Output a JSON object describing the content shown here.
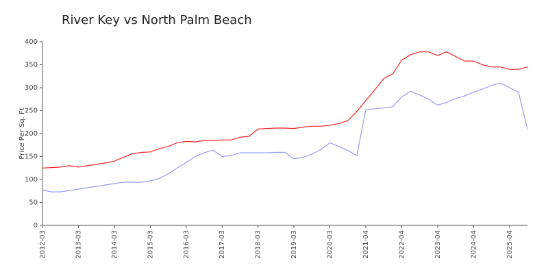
{
  "chart_data": {
    "type": "line",
    "title": "River Key vs North Palm Beach",
    "y_label": "Price Per Sq. Ft",
    "categories": [
      "2012-03",
      null,
      null,
      null,
      "2013-03",
      null,
      null,
      null,
      "2014-03",
      null,
      null,
      null,
      "2015-03",
      null,
      null,
      null,
      "2016-03",
      null,
      null,
      null,
      "2017-03",
      null,
      null,
      null,
      "2018-03",
      null,
      null,
      null,
      "2019-03",
      null,
      null,
      null,
      "2020-03",
      null,
      null,
      null,
      "2021-04",
      null,
      null,
      null,
      "2022-04",
      null,
      null,
      null,
      "2023-04",
      null,
      null,
      null,
      "2024-04",
      null,
      null,
      null,
      "2025-04",
      null,
      null
    ],
    "series": [
      {
        "color": "#ee2222",
        "values": [
          125,
          126,
          127,
          130,
          127,
          130,
          133,
          136,
          140,
          148,
          156,
          159,
          160,
          167,
          172,
          180,
          183,
          182,
          185,
          185,
          186,
          186,
          192,
          194,
          210,
          211,
          212,
          212,
          211,
          214,
          216,
          216,
          218,
          222,
          228,
          248,
          272,
          295,
          320,
          330,
          360,
          372,
          378,
          378,
          370,
          378,
          368,
          358,
          358,
          350,
          345,
          345,
          340,
          340,
          345
        ]
      },
      {
        "color": "#9999ee",
        "values": [
          77,
          73,
          73,
          76,
          79,
          82,
          85,
          88,
          91,
          94,
          94,
          94,
          97,
          102,
          112,
          125,
          137,
          150,
          158,
          164,
          150,
          152,
          158,
          158,
          158,
          158,
          159,
          159,
          145,
          148,
          155,
          165,
          180,
          172,
          163,
          152,
          252,
          254,
          256,
          258,
          280,
          292,
          284,
          275,
          262,
          268,
          276,
          282,
          290,
          297,
          305,
          310,
          300,
          290,
          210
        ]
      }
    ],
    "ylim": [
      0,
      400
    ],
    "yticks": [
      0,
      50,
      100,
      150,
      200,
      250,
      300,
      350,
      400
    ],
    "grid": false
  }
}
